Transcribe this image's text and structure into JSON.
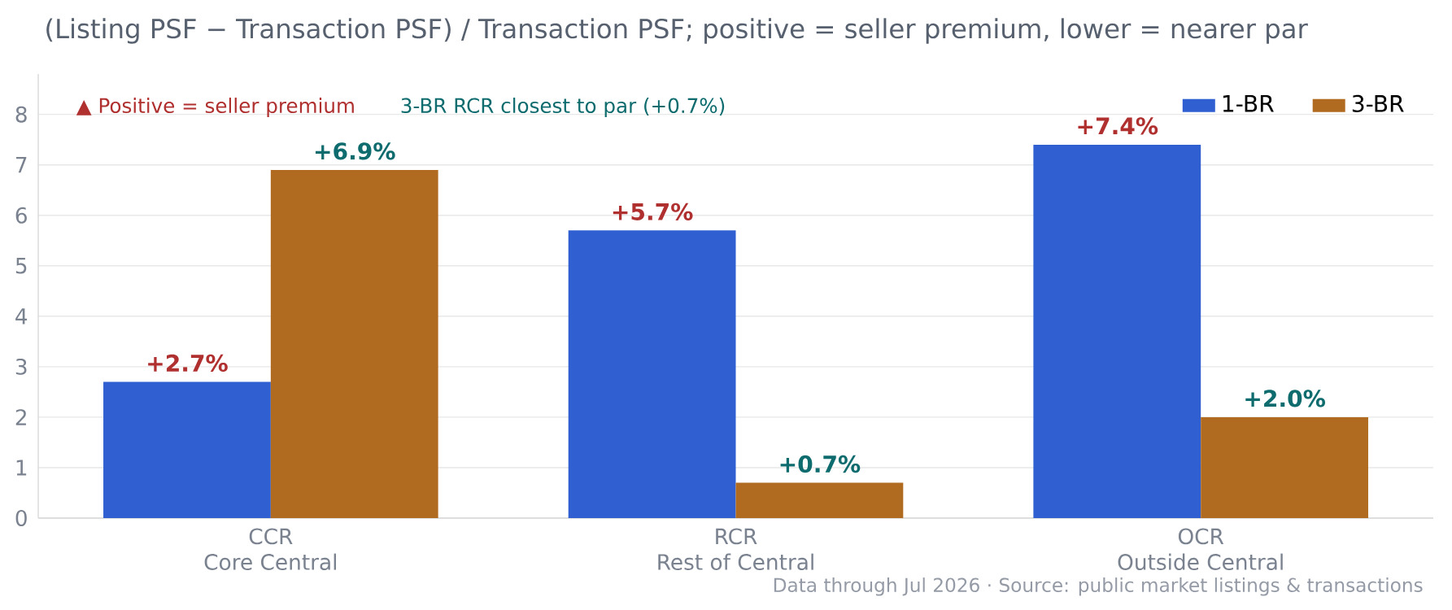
{
  "chart_data": {
    "type": "bar",
    "title": "(Listing PSF − Transaction PSF) / Transaction PSF; positive = seller premium, lower = nearer par",
    "categories": [
      "CCR\nCore Central",
      "RCR\nRest of Central",
      "OCR\nOutside Central"
    ],
    "series": [
      {
        "name": "1-BR",
        "color": "#2f5fd0",
        "values": [
          2.7,
          5.7,
          7.4
        ],
        "value_labels": [
          "+2.7%",
          "+5.7%",
          "+7.4%"
        ]
      },
      {
        "name": "3-BR",
        "color": "#b06b20",
        "values": [
          6.9,
          0.7,
          2.0
        ],
        "value_labels": [
          "+6.9%",
          "+0.7%",
          "+2.0%"
        ]
      }
    ],
    "ylim": [
      0,
      8.8
    ],
    "yticks": [
      0,
      1,
      2,
      3,
      4,
      5,
      6,
      7,
      8
    ],
    "grid": "y",
    "legend": "top right",
    "annotations": [
      "▲ Positive = seller premium",
      "3-BR RCR closest to par (+0.7%)",
      "Data through Jul 2026  ·  Source: public market listings & transactions"
    ]
  }
}
